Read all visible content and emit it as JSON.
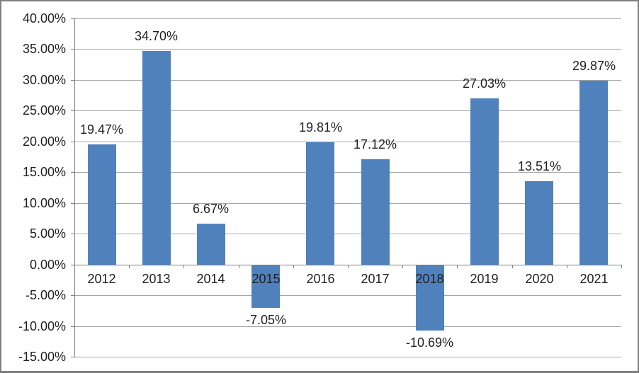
{
  "chart_data": {
    "type": "bar",
    "title": "",
    "xlabel": "",
    "ylabel": "",
    "categories": [
      "2012",
      "2013",
      "2014",
      "2015",
      "2016",
      "2017",
      "2018",
      "2019",
      "2020",
      "2021"
    ],
    "values": [
      19.47,
      34.7,
      6.67,
      -7.05,
      19.81,
      17.12,
      -10.69,
      27.03,
      13.51,
      29.87
    ],
    "data_labels": [
      "19.47%",
      "34.70%",
      "6.67%",
      "-7.05%",
      "19.81%",
      "17.12%",
      "-10.69%",
      "27.03%",
      "13.51%",
      "29.87%"
    ],
    "ylim": [
      -15,
      40
    ],
    "y_tick_step": 5,
    "y_tick_labels": [
      "40.00%",
      "35.00%",
      "30.00%",
      "25.00%",
      "20.00%",
      "15.00%",
      "10.00%",
      "5.00%",
      "0.00%",
      "-5.00%",
      "-10.00%",
      "-15.00%"
    ],
    "grid": true,
    "legend": "none",
    "data_label_position": "outside-end",
    "colors": {
      "bar": "#4f81bd",
      "gridline": "#a6a6a6",
      "axis": "#808080",
      "frame": "#7f7f7f",
      "text": "#1f1f1f",
      "background": "#ffffff"
    }
  }
}
